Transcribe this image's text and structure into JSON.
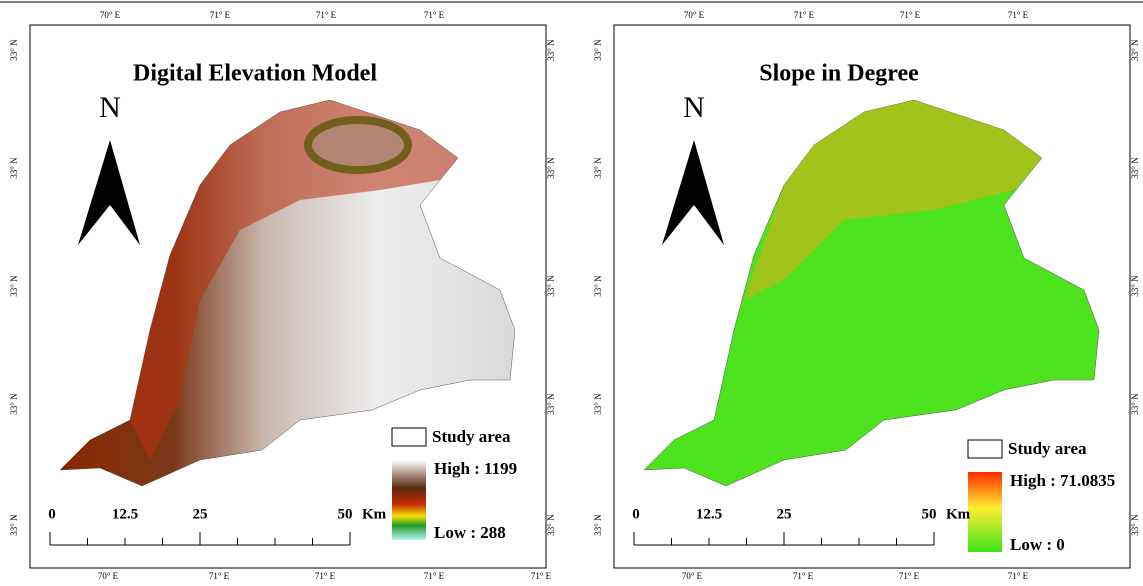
{
  "panels": [
    {
      "title": "Digital Elevation Model",
      "north": "N",
      "top_labels": [
        "70° E",
        "71° E",
        "71° E",
        "71° E"
      ],
      "bottom_labels": [
        "70° E",
        "71° E",
        "71° E",
        "71° E",
        "71° E"
      ],
      "left_labels": [
        "33° N",
        "33° N",
        "33° N",
        "33° N",
        "33° N"
      ],
      "right_labels": [
        "33° N",
        "33° N",
        "33° N",
        "33° N",
        "33° N"
      ],
      "legend": {
        "study_area": "Study area",
        "high": "High : 1199",
        "low": "Low : 288"
      },
      "scale": {
        "labels": [
          "0",
          "12.5",
          "25",
          "50"
        ],
        "unit": "Km"
      }
    },
    {
      "title": "Slope in Degree",
      "north": "N",
      "top_labels": [
        "70° E",
        "71° E",
        "71° E",
        "71° E"
      ],
      "bottom_labels": [
        "70° E",
        "71° E",
        "71° E",
        "71° E"
      ],
      "left_labels": [
        "33° N",
        "33° N",
        "33° N",
        "33° N",
        "33° N"
      ],
      "right_labels": [
        "33° N",
        "33° N",
        "33° N",
        "33° N",
        "33° N"
      ],
      "legend": {
        "study_area": "Study area",
        "high": "High : 71.0835",
        "low": "Low : 0"
      },
      "scale": {
        "labels": [
          "0",
          "12.5",
          "25",
          "50"
        ],
        "unit": "Km"
      }
    }
  ]
}
